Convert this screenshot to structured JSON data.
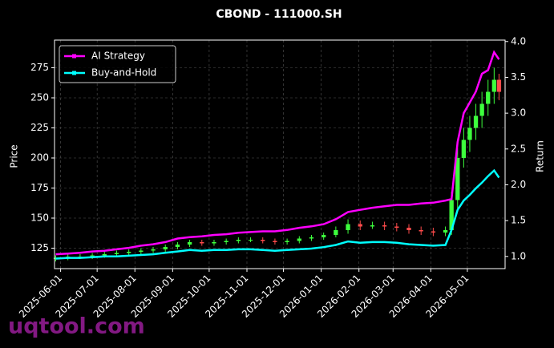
{
  "chart_data": {
    "type": "candlestick_returns",
    "title": "CBOND - 111000.SH",
    "ylabel": "Price",
    "y2label": "Return",
    "watermark": "uqtool.com",
    "x": [
      "2025-05-28",
      "2025-06-07",
      "2025-06-17",
      "2025-06-27",
      "2025-07-07",
      "2025-07-17",
      "2025-07-27",
      "2025-08-06",
      "2025-08-16",
      "2025-08-26",
      "2025-09-05",
      "2025-09-15",
      "2025-09-25",
      "2025-10-05",
      "2025-10-15",
      "2025-10-25",
      "2025-11-04",
      "2025-11-14",
      "2025-11-24",
      "2025-12-04",
      "2025-12-14",
      "2025-12-24",
      "2026-01-03",
      "2026-01-13",
      "2026-01-23",
      "2026-02-02",
      "2026-02-12",
      "2026-02-22",
      "2026-03-04",
      "2026-03-14",
      "2026-03-24",
      "2026-04-03",
      "2026-04-13",
      "2026-04-18",
      "2026-04-23",
      "2026-04-28",
      "2026-05-03",
      "2026-05-08",
      "2026-05-13",
      "2026-05-18",
      "2026-05-23",
      "2026-05-27"
    ],
    "open": [
      116,
      117,
      118,
      118,
      119,
      120,
      121,
      122,
      123,
      124,
      126,
      128,
      130,
      129,
      130,
      131,
      132,
      132,
      131,
      130,
      131,
      133,
      134,
      136,
      140,
      145,
      143,
      144,
      143,
      142,
      140,
      139,
      138,
      140,
      165,
      200,
      215,
      225,
      235,
      245,
      255,
      265
    ],
    "high": [
      119,
      120,
      120,
      121,
      122,
      123,
      124,
      125,
      126,
      128,
      130,
      132,
      132,
      132,
      133,
      134,
      134,
      134,
      133,
      133,
      135,
      136,
      138,
      143,
      149,
      148,
      147,
      147,
      146,
      145,
      143,
      142,
      143,
      172,
      208,
      225,
      235,
      245,
      255,
      265,
      275,
      270
    ],
    "low": [
      114,
      115,
      116,
      116,
      117,
      118,
      119,
      120,
      121,
      122,
      124,
      126,
      127,
      127,
      128,
      129,
      130,
      129,
      128,
      128,
      129,
      131,
      132,
      134,
      137,
      140,
      141,
      140,
      139,
      137,
      136,
      135,
      135,
      136,
      158,
      192,
      205,
      215,
      225,
      235,
      245,
      248
    ],
    "close": [
      117,
      118,
      118,
      119,
      120,
      121,
      122,
      123,
      124,
      126,
      128,
      130,
      129,
      130,
      131,
      132,
      132,
      131,
      130,
      131,
      133,
      134,
      136,
      140,
      145,
      143,
      144,
      143,
      142,
      140,
      139,
      138,
      140,
      165,
      200,
      215,
      225,
      235,
      245,
      255,
      265,
      255
    ],
    "up_color": "#3dff3d",
    "down_color": "#ff4b4b",
    "series": [
      {
        "name": "AI Strategy",
        "color": "#ff00ff",
        "axis": "y2",
        "values": [
          1.03,
          1.04,
          1.05,
          1.07,
          1.08,
          1.1,
          1.12,
          1.15,
          1.17,
          1.2,
          1.25,
          1.27,
          1.28,
          1.3,
          1.31,
          1.33,
          1.34,
          1.35,
          1.35,
          1.37,
          1.4,
          1.42,
          1.45,
          1.52,
          1.62,
          1.65,
          1.68,
          1.7,
          1.72,
          1.72,
          1.74,
          1.75,
          1.78,
          1.8,
          2.6,
          3.0,
          3.15,
          3.3,
          3.55,
          3.6,
          3.85,
          3.75
        ]
      },
      {
        "name": "Buy-and-Hold",
        "color": "#00ffff",
        "axis": "y2",
        "values": [
          0.97,
          0.98,
          0.98,
          0.99,
          1.0,
          1.0,
          1.01,
          1.02,
          1.03,
          1.05,
          1.07,
          1.09,
          1.08,
          1.09,
          1.09,
          1.1,
          1.1,
          1.09,
          1.08,
          1.09,
          1.1,
          1.11,
          1.13,
          1.16,
          1.21,
          1.19,
          1.2,
          1.2,
          1.19,
          1.17,
          1.16,
          1.15,
          1.16,
          1.37,
          1.65,
          1.78,
          1.86,
          1.95,
          2.03,
          2.12,
          2.2,
          2.1
        ]
      }
    ],
    "xlim": [
      "2025-05-27",
      "2026-06-01"
    ],
    "xticks": [
      "2025-06-01",
      "2025-07-01",
      "2025-08-01",
      "2025-09-01",
      "2025-10-01",
      "2025-11-01",
      "2025-12-01",
      "2026-01-01",
      "2026-02-01",
      "2026-03-01",
      "2026-04-01",
      "2026-05-01"
    ],
    "ylim": [
      108,
      298
    ],
    "yticks": [
      125,
      150,
      175,
      200,
      225,
      250,
      275
    ],
    "y2lim": [
      0.83,
      4.02
    ],
    "y2ticks": [
      {
        "value": 1,
        "label": "1.0"
      },
      1.5,
      {
        "value": 2,
        "label": "2.0"
      },
      2.5,
      {
        "value": 3,
        "label": "3.0"
      },
      3.5,
      {
        "value": 4,
        "label": "4.0"
      }
    ],
    "grid": true,
    "legend": "upper left"
  }
}
